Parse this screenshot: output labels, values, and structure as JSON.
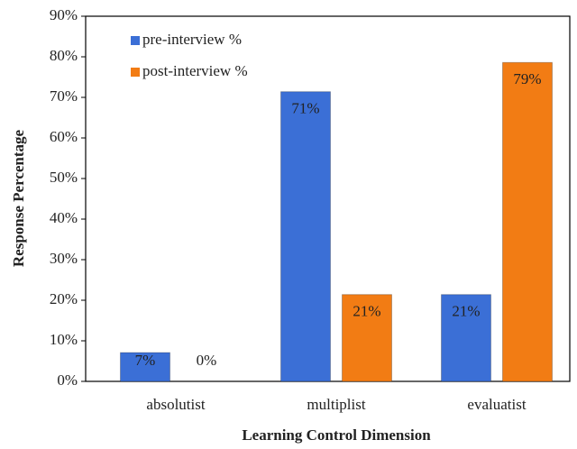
{
  "chart_data": {
    "type": "bar",
    "x_label": "Learning Control Dimension",
    "y_label": "Response Percentage",
    "categories": [
      "absolutist",
      "multiplist",
      "evaluatist"
    ],
    "series": [
      {
        "name": "pre-interview %",
        "color": "#3b6fd6",
        "values": [
          7.1,
          71.4,
          21.4
        ],
        "value_labels": [
          "7%",
          "71%",
          "21%"
        ]
      },
      {
        "name": "post-interview %",
        "color": "#f27c14",
        "values": [
          0,
          21.4,
          78.6
        ],
        "value_labels": [
          "0%",
          "21%",
          "79%"
        ]
      }
    ],
    "ylim": [
      0,
      90
    ],
    "yticks": [
      {
        "value": 0,
        "label": "0%"
      },
      {
        "value": 10,
        "label": "10%"
      },
      {
        "value": 20,
        "label": "20%"
      },
      {
        "value": 30,
        "label": "30%"
      },
      {
        "value": 40,
        "label": "40%"
      },
      {
        "value": 50,
        "label": "50%"
      },
      {
        "value": 60,
        "label": "60%"
      },
      {
        "value": 70,
        "label": "70%"
      },
      {
        "value": 80,
        "label": "80%"
      },
      {
        "value": 90,
        "label": "90%"
      }
    ],
    "legend": "upper left"
  }
}
